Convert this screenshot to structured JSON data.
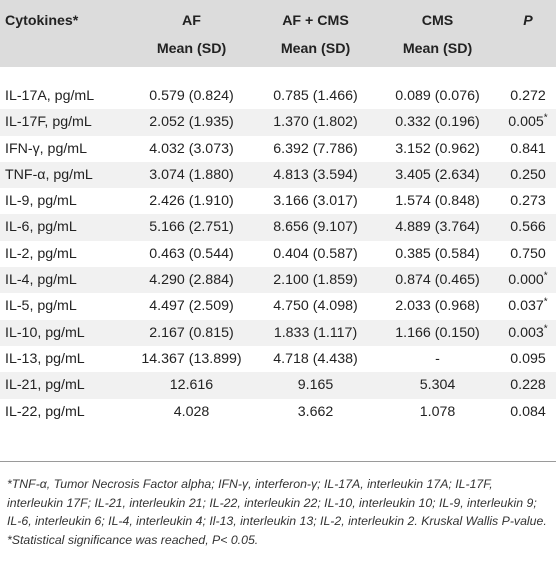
{
  "header": {
    "cytokines": "Cytokines*",
    "af": "AF",
    "af_cms": "AF + CMS",
    "cms": "CMS",
    "p": "P",
    "mean_sd": "Mean (SD)"
  },
  "rows": [
    {
      "name": "IL-17A, pg/mL",
      "af": "0.579 (0.824)",
      "af_cms": "0.785 (1.466)",
      "cms": "0.089 (0.076)",
      "p": "0.272",
      "sig": ""
    },
    {
      "name": "IL-17F, pg/mL",
      "af": "2.052 (1.935)",
      "af_cms": "1.370 (1.802)",
      "cms": "0.332 (0.196)",
      "p": "0.005",
      "sig": "*"
    },
    {
      "name": "IFN-γ, pg/mL",
      "af": "4.032 (3.073)",
      "af_cms": "6.392 (7.786)",
      "cms": "3.152 (0.962)",
      "p": "0.841",
      "sig": ""
    },
    {
      "name": "TNF-α, pg/mL",
      "af": "3.074 (1.880)",
      "af_cms": "4.813 (3.594)",
      "cms": "3.405 (2.634)",
      "p": "0.250",
      "sig": ""
    },
    {
      "name": "IL-9, pg/mL",
      "af": "2.426 (1.910)",
      "af_cms": "3.166 (3.017)",
      "cms": "1.574 (0.848)",
      "p": "0.273",
      "sig": ""
    },
    {
      "name": "IL-6, pg/mL",
      "af": "5.166 (2.751)",
      "af_cms": "8.656 (9.107)",
      "cms": "4.889 (3.764)",
      "p": "0.566",
      "sig": ""
    },
    {
      "name": "IL-2, pg/mL",
      "af": "0.463 (0.544)",
      "af_cms": "0.404 (0.587)",
      "cms": "0.385 (0.584)",
      "p": "0.750",
      "sig": ""
    },
    {
      "name": "IL-4, pg/mL",
      "af": "4.290 (2.884)",
      "af_cms": "2.100 (1.859)",
      "cms": "0.874 (0.465)",
      "p": "0.000",
      "sig": "*"
    },
    {
      "name": "IL-5, pg/mL",
      "af": "4.497 (2.509)",
      "af_cms": "4.750 (4.098)",
      "cms": "2.033 (0.968)",
      "p": "0.037",
      "sig": "*"
    },
    {
      "name": "IL-10, pg/mL",
      "af": "2.167 (0.815)",
      "af_cms": "1.833 (1.117)",
      "cms": "1.166 (0.150)",
      "p": "0.003",
      "sig": "*"
    },
    {
      "name": "IL-13, pg/mL",
      "af": "14.367 (13.899)",
      "af_cms": "4.718 (4.438)",
      "cms": "-",
      "p": "0.095",
      "sig": ""
    },
    {
      "name": "IL-21, pg/mL",
      "af": "12.616",
      "af_cms": "9.165",
      "cms": "5.304",
      "p": "0.228",
      "sig": ""
    },
    {
      "name": "IL-22, pg/mL",
      "af": "4.028",
      "af_cms": "3.662",
      "cms": "1.078",
      "p": "0.084",
      "sig": ""
    }
  ],
  "footnotes": [
    "*TNF-α, Tumor Necrosis Factor alpha; IFN-γ, interferon-γ; IL-17A, interleukin 17A; IL-17F, interleukin 17F; IL-21, interleukin 21; IL-22, interleukin 22; IL-10, interleukin 10; IL-9, interleukin 9; IL-6, interleukin 6; IL-4, interleukin 4; Il-13, interleukin 13; IL-2, interleukin 2. Kruskal Wallis P-value.",
    "*Statistical significance was reached, P< 0.05."
  ],
  "colors": {
    "header_bg": "#dcdcdc",
    "alt_row_bg": "#f1f1f1",
    "text": "#222222"
  }
}
